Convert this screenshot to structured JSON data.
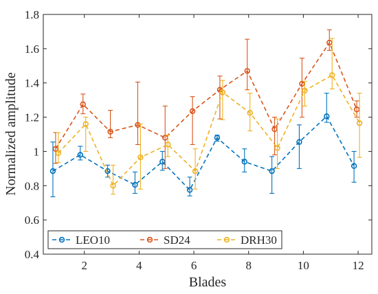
{
  "chart_data": {
    "type": "line",
    "title": "",
    "xlabel": "Blades",
    "ylabel": "Normalized amplitude",
    "xlim": [
      0.5,
      12.5
    ],
    "ylim": [
      0.4,
      1.8
    ],
    "xticks": [
      2,
      4,
      6,
      8,
      10,
      12
    ],
    "xtick_labels": [
      "2",
      "4",
      "6",
      "8",
      "10",
      "12"
    ],
    "yticks": [
      0.4,
      0.6,
      0.8,
      1.0,
      1.2,
      1.4,
      1.6,
      1.8
    ],
    "ytick_labels": [
      "0.4",
      "0.6",
      "0.8",
      "1",
      "1.2",
      "1.4",
      "1.6",
      "1.8"
    ],
    "grid": false,
    "legend_position": "bottom-left",
    "legend_columns": 3,
    "series": [
      {
        "name": "LEO10",
        "color": "#0072BD",
        "x": [
          0.85,
          1.85,
          2.85,
          3.85,
          4.85,
          5.85,
          6.85,
          7.85,
          8.85,
          9.85,
          10.85,
          11.85
        ],
        "y": [
          0.885,
          0.98,
          0.885,
          0.805,
          0.94,
          0.775,
          1.08,
          0.94,
          0.885,
          1.055,
          1.205,
          0.915
        ],
        "err_low": [
          0.735,
          0.95,
          0.85,
          0.755,
          0.89,
          0.74,
          1.06,
          0.88,
          0.755,
          0.9,
          1.17,
          0.82
        ],
        "err_high": [
          1.055,
          1.03,
          0.92,
          0.88,
          1.0,
          0.85,
          1.095,
          1.015,
          0.97,
          1.155,
          1.34,
          1.0
        ]
      },
      {
        "name": "SD24",
        "color": "#D95319",
        "x": [
          0.95,
          1.95,
          2.95,
          3.95,
          4.95,
          5.95,
          6.95,
          7.95,
          8.95,
          9.95,
          10.95,
          11.95
        ],
        "y": [
          1.015,
          1.275,
          1.115,
          1.155,
          1.08,
          1.235,
          1.36,
          1.47,
          1.13,
          1.395,
          1.635,
          1.245
        ],
        "err_low": [
          0.93,
          1.22,
          1.08,
          1.04,
          0.9,
          1.04,
          1.19,
          1.36,
          0.98,
          1.2,
          1.59,
          1.2
        ],
        "err_high": [
          1.11,
          1.335,
          1.24,
          1.405,
          1.265,
          1.32,
          1.44,
          1.655,
          1.2,
          1.545,
          1.71,
          1.295
        ]
      },
      {
        "name": "DRH30",
        "color": "#EDB120",
        "x": [
          1.05,
          2.05,
          3.05,
          4.05,
          5.05,
          6.05,
          7.05,
          8.05,
          9.05,
          10.05,
          11.05,
          12.05
        ],
        "y": [
          0.99,
          1.16,
          0.8,
          0.965,
          1.04,
          0.885,
          1.345,
          1.225,
          1.02,
          1.355,
          1.445,
          1.165
        ],
        "err_low": [
          0.935,
          1.0,
          0.75,
          0.78,
          0.97,
          0.78,
          1.185,
          1.12,
          0.9,
          1.265,
          1.365,
          0.965
        ],
        "err_high": [
          1.11,
          1.2,
          0.92,
          1.16,
          1.095,
          1.015,
          1.415,
          1.34,
          1.19,
          1.41,
          1.66,
          1.34
        ]
      }
    ]
  }
}
